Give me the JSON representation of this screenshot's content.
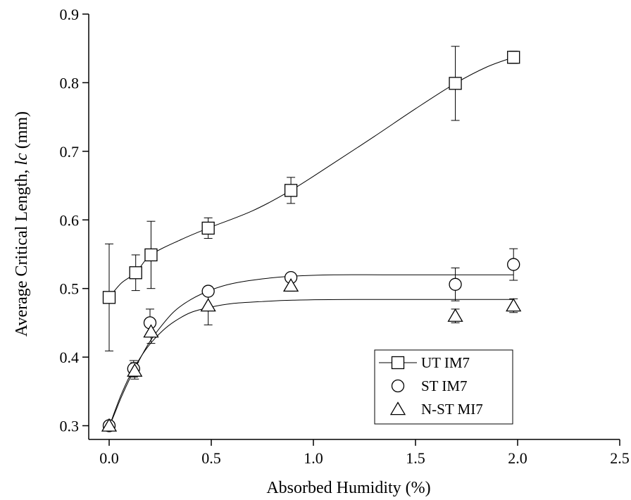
{
  "chart_data": {
    "type": "scatter",
    "xlabel": "Absorbed Humidity (%)",
    "ylabel_prefix": "Average Critical Length, ",
    "ylabel_symbol": "lc",
    "ylabel_unit": " (mm)",
    "xlim": [
      -0.1,
      2.5
    ],
    "ylim": [
      0.28,
      0.9
    ],
    "xticks": [
      0.0,
      0.5,
      1.0,
      1.5,
      2.0,
      2.5
    ],
    "xtick_labels": [
      "0.0",
      "0.5",
      "1.0",
      "1.5",
      "2.0",
      "2.5"
    ],
    "yticks": [
      0.3,
      0.4,
      0.5,
      0.6,
      0.7,
      0.8,
      0.9
    ],
    "ytick_labels": [
      "0.3",
      "0.4",
      "0.5",
      "0.6",
      "0.7",
      "0.8",
      "0.9"
    ],
    "legend_position": "bottom-right",
    "series": [
      {
        "name": "UT IM7",
        "marker": "square",
        "points": [
          {
            "x": 0.0,
            "y": 0.487,
            "err": 0.078
          },
          {
            "x": 0.13,
            "y": 0.523,
            "err": 0.026
          },
          {
            "x": 0.205,
            "y": 0.549,
            "err": 0.049
          },
          {
            "x": 0.485,
            "y": 0.588,
            "err": 0.015
          },
          {
            "x": 0.89,
            "y": 0.643,
            "err": 0.019
          },
          {
            "x": 1.695,
            "y": 0.799,
            "err": 0.054
          },
          {
            "x": 1.98,
            "y": 0.837,
            "err": 0.009
          }
        ],
        "fit": [
          [
            0.0,
            0.487
          ],
          [
            0.06,
            0.508
          ],
          [
            0.13,
            0.523
          ],
          [
            0.205,
            0.549
          ],
          [
            0.35,
            0.571
          ],
          [
            0.485,
            0.588
          ],
          [
            0.7,
            0.613
          ],
          [
            0.89,
            0.643
          ],
          [
            1.1,
            0.683
          ],
          [
            1.3,
            0.722
          ],
          [
            1.5,
            0.762
          ],
          [
            1.695,
            0.799
          ],
          [
            1.85,
            0.823
          ],
          [
            1.98,
            0.837
          ]
        ]
      },
      {
        "name": "ST IM7",
        "marker": "circle",
        "points": [
          {
            "x": 0.0,
            "y": 0.3,
            "err": 0
          },
          {
            "x": 0.12,
            "y": 0.383,
            "err": 0.012
          },
          {
            "x": 0.2,
            "y": 0.45,
            "err": 0.02
          },
          {
            "x": 0.485,
            "y": 0.496,
            "err": 0.006
          },
          {
            "x": 0.89,
            "y": 0.516,
            "err": 0.005
          },
          {
            "x": 1.695,
            "y": 0.506,
            "err": 0.024
          },
          {
            "x": 1.98,
            "y": 0.535,
            "err": 0.023
          }
        ],
        "fit": [
          [
            0.0,
            0.298
          ],
          [
            0.03,
            0.32
          ],
          [
            0.06,
            0.342
          ],
          [
            0.1,
            0.368
          ],
          [
            0.15,
            0.397
          ],
          [
            0.2,
            0.423
          ],
          [
            0.26,
            0.447
          ],
          [
            0.32,
            0.467
          ],
          [
            0.4,
            0.484
          ],
          [
            0.5,
            0.498
          ],
          [
            0.6,
            0.507
          ],
          [
            0.75,
            0.514
          ],
          [
            0.9,
            0.518
          ],
          [
            1.1,
            0.52
          ],
          [
            1.4,
            0.52
          ],
          [
            1.98,
            0.52
          ]
        ]
      },
      {
        "name": "N-ST MI7",
        "marker": "triangle",
        "points": [
          {
            "x": 0.0,
            "y": 0.3,
            "err": 0
          },
          {
            "x": 0.125,
            "y": 0.38,
            "err": 0.012
          },
          {
            "x": 0.205,
            "y": 0.437,
            "err": 0.017
          },
          {
            "x": 0.485,
            "y": 0.475,
            "err": 0.028
          },
          {
            "x": 0.89,
            "y": 0.504,
            "err": 0.008
          },
          {
            "x": 1.695,
            "y": 0.46,
            "err": 0.01
          },
          {
            "x": 1.98,
            "y": 0.475,
            "err": 0.01
          }
        ],
        "fit": [
          [
            0.0,
            0.298
          ],
          [
            0.03,
            0.323
          ],
          [
            0.06,
            0.346
          ],
          [
            0.1,
            0.372
          ],
          [
            0.15,
            0.398
          ],
          [
            0.2,
            0.419
          ],
          [
            0.26,
            0.438
          ],
          [
            0.32,
            0.452
          ],
          [
            0.4,
            0.465
          ],
          [
            0.5,
            0.473
          ],
          [
            0.6,
            0.478
          ],
          [
            0.75,
            0.481
          ],
          [
            0.9,
            0.483
          ],
          [
            1.2,
            0.484
          ],
          [
            1.98,
            0.484
          ]
        ]
      }
    ]
  }
}
